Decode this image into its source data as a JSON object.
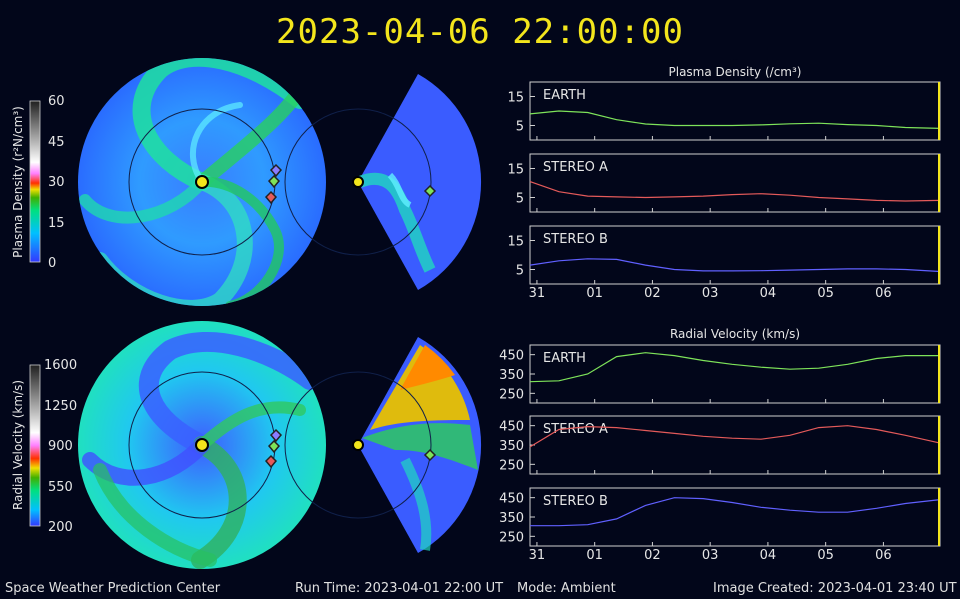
{
  "title": "2023-04-06 22:00:00",
  "footer": {
    "org": "Space Weather Prediction Center",
    "run_time": "Run Time: 2023-04-01 22:00 UT",
    "mode": "Mode: Ambient",
    "image_created": "Image Created: 2023-04-01 23:40 UT"
  },
  "colors": {
    "earth": "#7ee35a",
    "stereo_a": "#e45a5a",
    "stereo_b": "#6060ff",
    "now_marker": "#f3e51c"
  },
  "colorbars": {
    "density": {
      "label": "Plasma Density (r²N/cm³)",
      "ticks": [
        "60",
        "45",
        "30",
        "15",
        "0"
      ]
    },
    "velocity": {
      "label": "Radial Velocity (km/s)",
      "ticks": [
        "1600",
        "1250",
        "900",
        "550",
        "200"
      ]
    }
  },
  "chart_data": [
    {
      "type": "line",
      "title": "Plasma Density (/cm³)",
      "x_ticks": [
        "31",
        "01",
        "02",
        "03",
        "04",
        "05",
        "06"
      ],
      "xlim": [
        0,
        7.1
      ],
      "panels": [
        {
          "name": "EARTH",
          "ylim": [
            0,
            20
          ],
          "y_ticks": [
            "15",
            "5"
          ],
          "y_tick_values": [
            15,
            5
          ],
          "x": [
            0,
            0.5,
            1,
            1.5,
            2,
            2.5,
            3,
            3.5,
            4,
            4.5,
            5,
            5.5,
            6,
            6.5,
            7.1
          ],
          "values": [
            9,
            10,
            9.5,
            7,
            5.5,
            5,
            5,
            5,
            5.2,
            5.6,
            5.8,
            5.3,
            5,
            4.3,
            4
          ]
        },
        {
          "name": "STEREO A",
          "ylim": [
            0,
            20
          ],
          "y_ticks": [
            "15",
            "5"
          ],
          "y_tick_values": [
            15,
            5
          ],
          "x": [
            0,
            0.5,
            1,
            1.5,
            2,
            2.5,
            3,
            3.5,
            4,
            4.5,
            5,
            5.5,
            6,
            6.5,
            7.1
          ],
          "values": [
            10.5,
            7,
            5.5,
            5.2,
            5,
            5.2,
            5.5,
            6,
            6.3,
            5.8,
            5,
            4.5,
            4,
            3.8,
            4
          ]
        },
        {
          "name": "STEREO B",
          "ylim": [
            0,
            20
          ],
          "y_ticks": [
            "15",
            "5"
          ],
          "y_tick_values": [
            15,
            5
          ],
          "x": [
            0,
            0.5,
            1,
            1.5,
            2,
            2.5,
            3,
            3.5,
            4,
            4.5,
            5,
            5.5,
            6,
            6.5,
            7.1
          ],
          "values": [
            6.5,
            8,
            8.7,
            8.5,
            6.5,
            5,
            4.5,
            4.5,
            4.6,
            4.8,
            5,
            5.2,
            5.2,
            5,
            4.3
          ]
        }
      ]
    },
    {
      "type": "line",
      "title": "Radial Velocity (km/s)",
      "x_ticks": [
        "31",
        "01",
        "02",
        "03",
        "04",
        "05",
        "06"
      ],
      "xlim": [
        0,
        7.1
      ],
      "panels": [
        {
          "name": "EARTH",
          "ylim": [
            200,
            500
          ],
          "y_ticks": [
            "450",
            "350",
            "250"
          ],
          "y_tick_values": [
            450,
            350,
            250
          ],
          "x": [
            0,
            0.5,
            1,
            1.5,
            2,
            2.5,
            3,
            3.5,
            4,
            4.5,
            5,
            5.5,
            6,
            6.5,
            7.1
          ],
          "values": [
            310,
            315,
            350,
            440,
            460,
            445,
            420,
            400,
            385,
            375,
            380,
            400,
            430,
            445,
            445
          ]
        },
        {
          "name": "STEREO A",
          "ylim": [
            200,
            500
          ],
          "y_ticks": [
            "450",
            "350",
            "250"
          ],
          "y_tick_values": [
            450,
            350,
            250
          ],
          "x": [
            0,
            0.5,
            1,
            1.5,
            2,
            2.5,
            3,
            3.5,
            4,
            4.5,
            5,
            5.5,
            6,
            6.5,
            7.1
          ],
          "values": [
            340,
            430,
            445,
            440,
            425,
            410,
            395,
            385,
            380,
            400,
            440,
            450,
            430,
            400,
            360
          ]
        },
        {
          "name": "STEREO B",
          "ylim": [
            200,
            500
          ],
          "y_ticks": [
            "450",
            "350",
            "250"
          ],
          "y_tick_values": [
            450,
            350,
            250
          ],
          "x": [
            0,
            0.5,
            1,
            1.5,
            2,
            2.5,
            3,
            3.5,
            4,
            4.5,
            5,
            5.5,
            6,
            6.5,
            7.1
          ],
          "values": [
            305,
            305,
            310,
            340,
            410,
            450,
            445,
            425,
            400,
            385,
            375,
            375,
            395,
            420,
            440
          ]
        }
      ]
    }
  ]
}
